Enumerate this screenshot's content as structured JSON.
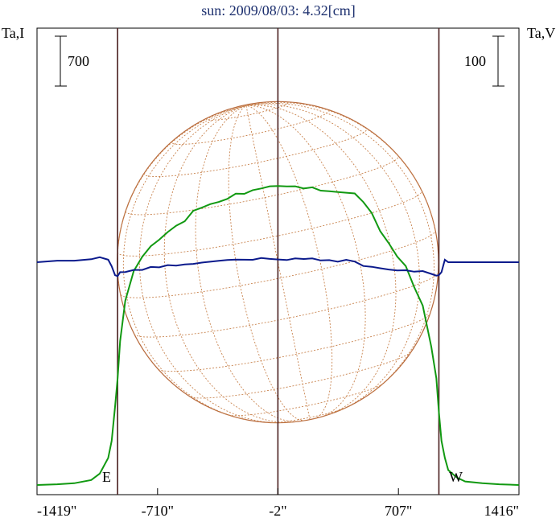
{
  "chart_data": {
    "type": "line",
    "title": "sun: 2009/08/03: 4.32[cm]",
    "left_axis_label": "Ta,I",
    "right_axis_label": "Ta,V",
    "left_scale_label": "700",
    "right_scale_label": "100",
    "east_label": "E",
    "west_label": "W",
    "x_tick_labels": [
      "-1419\"",
      "-710\"",
      "-2\"",
      "707\"",
      "1416\""
    ],
    "x_tick_values": [
      -1419,
      -710,
      -2,
      707,
      1416
    ],
    "xlim": [
      -1419,
      1416
    ],
    "disk_radius_arcsec": 945,
    "limb_lines_x": [
      -945,
      -2,
      945
    ],
    "series": [
      {
        "color": "#119911",
        "unit_per_scalebar": 700,
        "x": [
          -1419,
          -1300,
          -1200,
          -1100,
          -1050,
          -1000,
          -980,
          -960,
          -945,
          -930,
          -900,
          -850,
          -800,
          -750,
          -700,
          -650,
          -600,
          -550,
          -500,
          -450,
          -400,
          -350,
          -300,
          -250,
          -200,
          -150,
          -100,
          -50,
          0,
          50,
          100,
          150,
          200,
          250,
          300,
          350,
          400,
          450,
          500,
          550,
          600,
          650,
          700,
          750,
          800,
          850,
          900,
          930,
          945,
          960,
          980,
          1000,
          1050,
          1100,
          1200,
          1300,
          1416
        ],
        "values": [
          0,
          10,
          25,
          70,
          160,
          380,
          620,
          1100,
          1500,
          2020,
          2600,
          2990,
          3215,
          3345,
          3445,
          3555,
          3630,
          3715,
          3835,
          3905,
          3935,
          3975,
          4020,
          4080,
          4100,
          4125,
          4175,
          4185,
          4200,
          4195,
          4185,
          4175,
          4165,
          4145,
          4115,
          4115,
          4105,
          4085,
          3985,
          3805,
          3575,
          3385,
          3210,
          3075,
          2770,
          2530,
          1930,
          1500,
          1020,
          620,
          380,
          210,
          105,
          50,
          25,
          10,
          0
        ]
      },
      {
        "color": "#0b1a8c",
        "unit_per_scalebar": 100,
        "x": [
          -1419,
          -1300,
          -1200,
          -1100,
          -1050,
          -1000,
          -980,
          -960,
          -945,
          -930,
          -900,
          -850,
          -800,
          -750,
          -700,
          -650,
          -600,
          -550,
          -500,
          -450,
          -400,
          -350,
          -300,
          -250,
          -200,
          -150,
          -100,
          -50,
          0,
          50,
          100,
          150,
          200,
          250,
          300,
          350,
          400,
          450,
          500,
          550,
          600,
          650,
          700,
          750,
          800,
          850,
          900,
          930,
          945,
          960,
          980,
          1000,
          1050,
          1100,
          1200,
          1300,
          1416
        ],
        "values": [
          0,
          3,
          3,
          6,
          10,
          5,
          -8,
          -26,
          -28,
          -20,
          -18,
          -17,
          -14,
          -11,
          -9,
          -7,
          -6,
          -5,
          -3,
          -1,
          1,
          3,
          4,
          6,
          4,
          6,
          7,
          8,
          4,
          6,
          6,
          8,
          6,
          5,
          3,
          2,
          4,
          2,
          -8,
          -9,
          -12,
          -15,
          -16,
          -17,
          -18,
          -19,
          -22,
          -27,
          -26,
          -20,
          5,
          0,
          0,
          0,
          0,
          0,
          0
        ]
      }
    ]
  }
}
